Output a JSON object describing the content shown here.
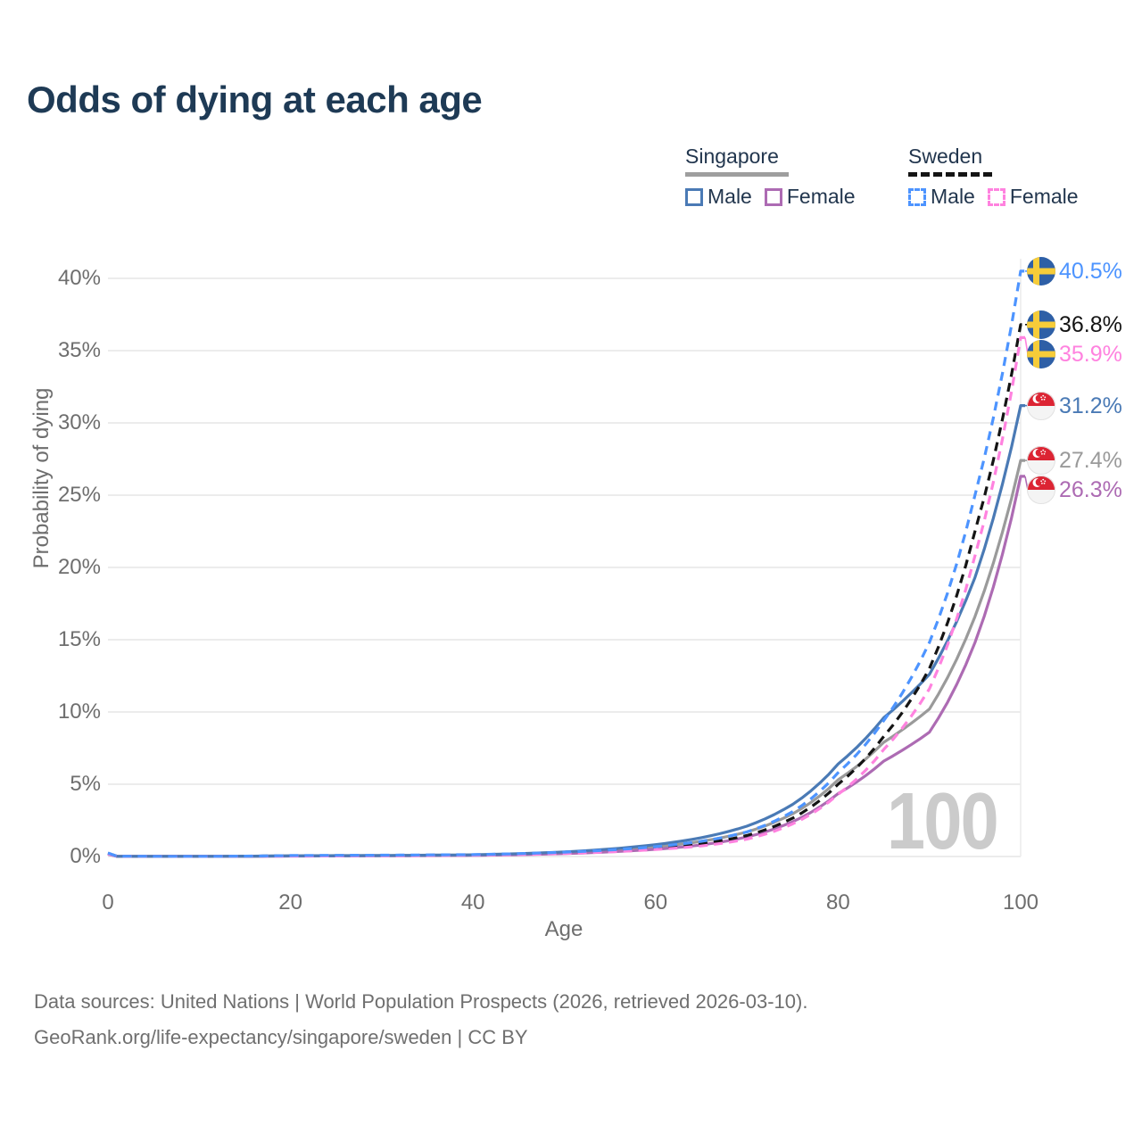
{
  "title": "Odds of dying at each age",
  "legend": {
    "groups": [
      {
        "name": "Singapore",
        "line_style": "solid",
        "underline_color": "#9e9e9e",
        "items": [
          {
            "label": "Male",
            "color": "#4a7ab5"
          },
          {
            "label": "Female",
            "color": "#ad6bb3"
          }
        ]
      },
      {
        "name": "Sweden",
        "line_style": "dashed",
        "underline_color": "#141414",
        "items": [
          {
            "label": "Male",
            "color": "#4d94ff"
          },
          {
            "label": "Female",
            "color": "#ff82df"
          }
        ]
      }
    ]
  },
  "chart_data": {
    "type": "line",
    "title": "Odds of dying at each age",
    "xlabel": "Age",
    "ylabel": "Probability of dying",
    "xlim": [
      0,
      100
    ],
    "ylim": [
      0,
      40.5
    ],
    "grid": "horizontal",
    "watermark": "100",
    "xticks": [
      {
        "v": 0,
        "label": "0"
      },
      {
        "v": 20,
        "label": "20"
      },
      {
        "v": 40,
        "label": "40"
      },
      {
        "v": 60,
        "label": "60"
      },
      {
        "v": 80,
        "label": "80"
      },
      {
        "v": 100,
        "label": "100"
      }
    ],
    "yticks": [
      {
        "v": 0,
        "label": "0%"
      },
      {
        "v": 5,
        "label": "5%"
      },
      {
        "v": 10,
        "label": "10%"
      },
      {
        "v": 15,
        "label": "15%"
      },
      {
        "v": 20,
        "label": "20%"
      },
      {
        "v": 25,
        "label": "25%"
      },
      {
        "v": 30,
        "label": "30%"
      },
      {
        "v": 35,
        "label": "35%"
      },
      {
        "v": 40,
        "label": "40%"
      }
    ],
    "x_ages": [
      0,
      1,
      10,
      20,
      30,
      40,
      50,
      55,
      60,
      65,
      70,
      75,
      80,
      85,
      90,
      95,
      100
    ],
    "series": [
      {
        "name": "Sweden Male",
        "country": "Sweden",
        "sex": "Male",
        "color": "#4d94ff",
        "dash": true,
        "flag": "sweden",
        "end_label": "40.5%",
        "end_value": 40.5,
        "values_pct": [
          0.25,
          0.02,
          0.01,
          0.07,
          0.09,
          0.13,
          0.3,
          0.45,
          0.68,
          1.05,
          1.7,
          3.1,
          5.8,
          9.4,
          14.8,
          25.0,
          40.5
        ]
      },
      {
        "name": "Sweden Total",
        "country": "Sweden",
        "sex": "Total",
        "color": "#141414",
        "dash": true,
        "flag": "sweden",
        "end_label": "36.8%",
        "end_value": 36.8,
        "values_pct": [
          0.22,
          0.018,
          0.009,
          0.05,
          0.07,
          0.11,
          0.25,
          0.38,
          0.57,
          0.88,
          1.45,
          2.65,
          5.0,
          8.3,
          13.0,
          22.5,
          36.8
        ]
      },
      {
        "name": "Sweden Female",
        "country": "Sweden",
        "sex": "Female",
        "color": "#ff82df",
        "dash": true,
        "flag": "sweden",
        "end_label": "35.9%",
        "end_value": 35.9,
        "values_pct": [
          0.2,
          0.015,
          0.008,
          0.03,
          0.05,
          0.09,
          0.21,
          0.32,
          0.48,
          0.73,
          1.2,
          2.25,
          4.3,
          7.4,
          11.6,
          20.8,
          35.9
        ]
      },
      {
        "name": "Singapore Male",
        "country": "Singapore",
        "sex": "Male",
        "color": "#4a7ab5",
        "dash": false,
        "flag": "singapore",
        "end_label": "31.2%",
        "end_value": 31.2,
        "values_pct": [
          0.2,
          0.015,
          0.01,
          0.05,
          0.07,
          0.12,
          0.32,
          0.52,
          0.82,
          1.3,
          2.1,
          3.6,
          6.4,
          9.6,
          12.6,
          19.3,
          31.2
        ]
      },
      {
        "name": "Singapore Total",
        "country": "Singapore",
        "sex": "Total",
        "color": "#9a9a9a",
        "dash": false,
        "flag": "singapore",
        "end_label": "27.4%",
        "end_value": 27.4,
        "values_pct": [
          0.18,
          0.013,
          0.009,
          0.04,
          0.06,
          0.1,
          0.26,
          0.42,
          0.66,
          1.05,
          1.7,
          2.95,
          5.3,
          7.9,
          10.2,
          16.6,
          27.4
        ]
      },
      {
        "name": "Singapore Female",
        "country": "Singapore",
        "sex": "Female",
        "color": "#ad6bb3",
        "dash": false,
        "flag": "singapore",
        "end_label": "26.3%",
        "end_value": 26.3,
        "values_pct": [
          0.16,
          0.012,
          0.008,
          0.03,
          0.05,
          0.08,
          0.2,
          0.32,
          0.5,
          0.8,
          1.35,
          2.4,
          4.35,
          6.6,
          8.6,
          14.8,
          26.3
        ]
      }
    ],
    "flag_colors": {
      "sweden_blue": "#2e5fa6",
      "sweden_yellow": "#f6cc39",
      "singapore_red": "#dc2433",
      "singapore_white": "#f4f4f4"
    },
    "gridline_color": "#ececec"
  },
  "footer": {
    "line1": "Data sources: United Nations | World Population Prospects (2026, retrieved 2026-03-10).",
    "line2": "GeoRank.org/life-expectancy/singapore/sweden | CC BY"
  }
}
